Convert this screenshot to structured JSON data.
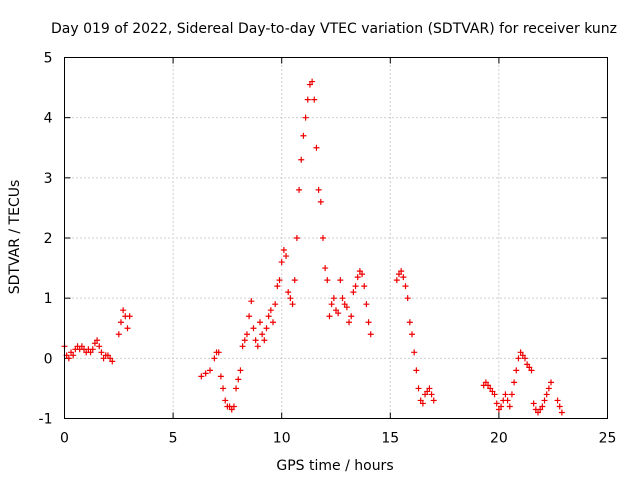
{
  "chart_data": {
    "type": "scatter",
    "title": "Day 019 of 2022, Sidereal Day-to-day VTEC variation (SDTVAR) for receiver kunz",
    "xlabel": "GPS time / hours",
    "ylabel": "SDTVAR / TECUs",
    "xlim": [
      0,
      25
    ],
    "ylim": [
      -1,
      5
    ],
    "xticks": [
      0,
      5,
      10,
      15,
      20,
      25
    ],
    "yticks": [
      -1,
      0,
      1,
      2,
      3,
      4,
      5
    ],
    "grid": true,
    "marker": "+",
    "color": "#ee0000",
    "series": [
      {
        "name": "SDTVAR",
        "x": [
          0.0,
          0.1,
          0.2,
          0.3,
          0.4,
          0.5,
          0.6,
          0.7,
          0.8,
          0.9,
          1.0,
          1.1,
          1.2,
          1.3,
          1.4,
          1.5,
          1.6,
          1.7,
          1.8,
          1.9,
          2.0,
          2.1,
          2.2,
          2.5,
          2.6,
          2.7,
          2.8,
          2.9,
          3.0,
          6.3,
          6.5,
          6.7,
          6.9,
          7.0,
          7.1,
          7.2,
          7.3,
          7.4,
          7.5,
          7.6,
          7.7,
          7.8,
          7.9,
          8.0,
          8.1,
          8.2,
          8.3,
          8.4,
          8.5,
          8.6,
          8.7,
          8.8,
          8.9,
          9.0,
          9.1,
          9.2,
          9.3,
          9.4,
          9.5,
          9.6,
          9.7,
          9.8,
          9.9,
          10.0,
          10.1,
          10.2,
          10.3,
          10.4,
          10.5,
          10.6,
          10.7,
          10.8,
          10.9,
          11.0,
          11.1,
          11.2,
          11.3,
          11.4,
          11.5,
          11.6,
          11.7,
          11.8,
          11.9,
          12.0,
          12.1,
          12.2,
          12.3,
          12.4,
          12.5,
          12.6,
          12.7,
          12.8,
          12.9,
          13.0,
          13.1,
          13.2,
          13.3,
          13.4,
          13.5,
          13.6,
          13.7,
          13.8,
          13.9,
          14.0,
          14.1,
          15.3,
          15.4,
          15.5,
          15.6,
          15.7,
          15.8,
          15.9,
          16.0,
          16.1,
          16.2,
          16.3,
          16.4,
          16.5,
          16.6,
          16.7,
          16.8,
          16.9,
          17.0,
          19.3,
          19.4,
          19.5,
          19.6,
          19.7,
          19.8,
          19.9,
          20.0,
          20.1,
          20.2,
          20.3,
          20.4,
          20.5,
          20.6,
          20.7,
          20.8,
          20.9,
          21.0,
          21.1,
          21.2,
          21.3,
          21.4,
          21.5,
          21.6,
          21.7,
          21.8,
          21.9,
          22.0,
          22.1,
          22.2,
          22.3,
          22.4,
          22.7,
          22.8,
          22.9
        ],
        "y": [
          0.2,
          0.05,
          0.0,
          0.1,
          0.05,
          0.15,
          0.2,
          0.15,
          0.2,
          0.15,
          0.1,
          0.15,
          0.1,
          0.15,
          0.25,
          0.3,
          0.2,
          0.1,
          0.0,
          0.05,
          0.05,
          0.0,
          -0.05,
          0.4,
          0.6,
          0.8,
          0.7,
          0.5,
          0.7,
          -0.3,
          -0.25,
          -0.2,
          0.0,
          0.1,
          0.1,
          -0.3,
          -0.5,
          -0.7,
          -0.8,
          -0.8,
          -0.85,
          -0.8,
          -0.5,
          -0.35,
          -0.2,
          0.2,
          0.3,
          0.4,
          0.7,
          0.95,
          0.5,
          0.3,
          0.2,
          0.6,
          0.4,
          0.3,
          0.5,
          0.7,
          0.8,
          0.6,
          0.9,
          1.2,
          1.3,
          1.6,
          1.8,
          1.7,
          1.1,
          1.0,
          0.9,
          1.3,
          2.0,
          2.8,
          3.3,
          3.7,
          4.0,
          4.3,
          4.55,
          4.6,
          4.3,
          3.5,
          2.8,
          2.6,
          2.0,
          1.5,
          1.3,
          0.7,
          0.9,
          1.0,
          0.8,
          0.75,
          1.3,
          1.0,
          0.9,
          0.85,
          0.6,
          0.7,
          1.1,
          1.2,
          1.35,
          1.45,
          1.4,
          1.2,
          0.9,
          0.6,
          0.4,
          1.3,
          1.4,
          1.45,
          1.35,
          1.2,
          1.0,
          0.6,
          0.4,
          0.1,
          -0.2,
          -0.5,
          -0.7,
          -0.75,
          -0.6,
          -0.55,
          -0.5,
          -0.6,
          -0.7,
          -0.45,
          -0.4,
          -0.45,
          -0.5,
          -0.55,
          -0.6,
          -0.75,
          -0.85,
          -0.8,
          -0.7,
          -0.6,
          -0.7,
          -0.8,
          -0.6,
          -0.4,
          -0.2,
          0.0,
          0.1,
          0.05,
          0.0,
          -0.1,
          -0.15,
          -0.2,
          -0.75,
          -0.85,
          -0.9,
          -0.85,
          -0.8,
          -0.7,
          -0.6,
          -0.5,
          -0.4,
          -0.7,
          -0.8,
          -0.9
        ]
      }
    ]
  }
}
